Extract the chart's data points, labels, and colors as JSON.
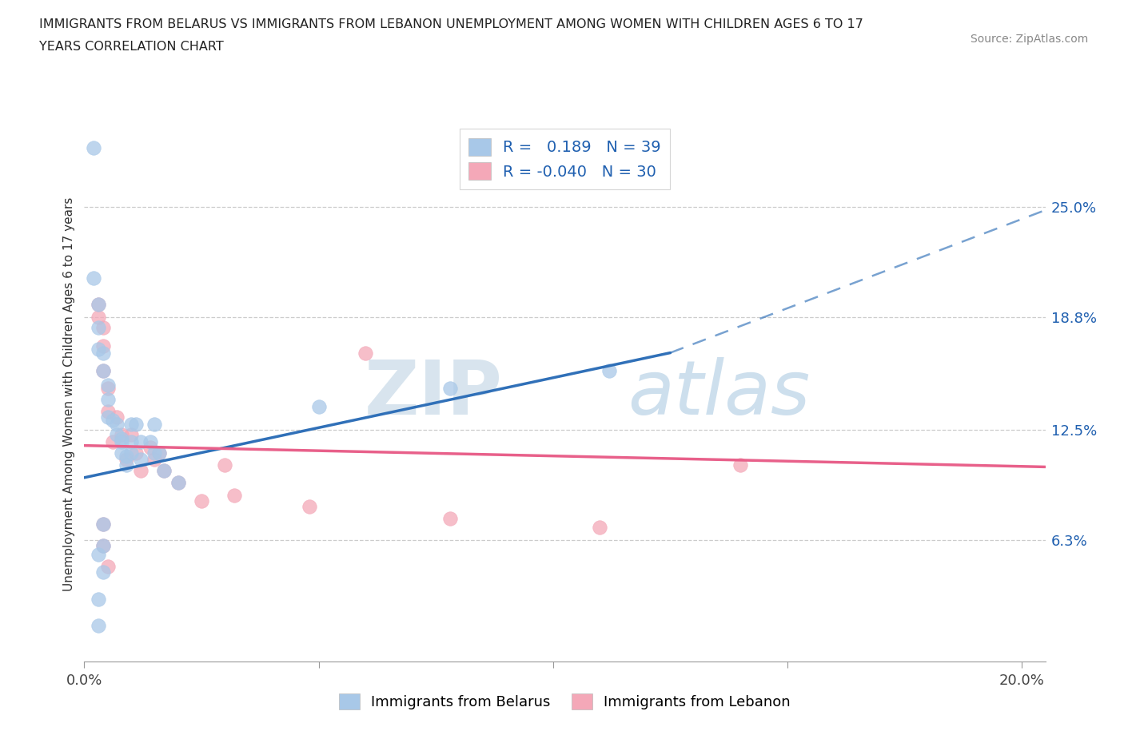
{
  "title_line1": "IMMIGRANTS FROM BELARUS VS IMMIGRANTS FROM LEBANON UNEMPLOYMENT AMONG WOMEN WITH CHILDREN AGES 6 TO 17",
  "title_line2": "YEARS CORRELATION CHART",
  "source_text": "Source: ZipAtlas.com",
  "ylabel": "Unemployment Among Women with Children Ages 6 to 17 years",
  "xlim": [
    0.0,
    0.205
  ],
  "ylim": [
    -0.005,
    0.295
  ],
  "xtick_positions": [
    0.0,
    0.05,
    0.1,
    0.15,
    0.2
  ],
  "xticklabels": [
    "0.0%",
    "",
    "",
    "",
    "20.0%"
  ],
  "ytick_positions": [
    0.063,
    0.125,
    0.188,
    0.25
  ],
  "ytick_labels": [
    "6.3%",
    "12.5%",
    "18.8%",
    "25.0%"
  ],
  "r_belarus": 0.189,
  "n_belarus": 39,
  "r_lebanon": -0.04,
  "n_lebanon": 30,
  "color_belarus": "#a8c8e8",
  "color_lebanon": "#f4a8b8",
  "line_color_belarus": "#3070b8",
  "line_color_lebanon": "#e8608a",
  "watermark_zip": "ZIP",
  "watermark_atlas": "atlas",
  "belarus_line_x0": 0.0,
  "belarus_line_y0": 0.098,
  "belarus_line_x1": 0.125,
  "belarus_line_y1": 0.168,
  "belarus_line_x2": 0.205,
  "belarus_line_y2": 0.248,
  "lebanon_line_x0": 0.0,
  "lebanon_line_y0": 0.116,
  "lebanon_line_x1": 0.205,
  "lebanon_line_y1": 0.104,
  "belarus_x": [
    0.002,
    0.002,
    0.003,
    0.003,
    0.003,
    0.004,
    0.004,
    0.005,
    0.005,
    0.005,
    0.006,
    0.007,
    0.007,
    0.008,
    0.008,
    0.008,
    0.009,
    0.009,
    0.01,
    0.01,
    0.01,
    0.011,
    0.012,
    0.012,
    0.014,
    0.015,
    0.015,
    0.016,
    0.017,
    0.02,
    0.05,
    0.078,
    0.112,
    0.003,
    0.003,
    0.003,
    0.004,
    0.004,
    0.004
  ],
  "belarus_y": [
    0.283,
    0.21,
    0.195,
    0.182,
    0.17,
    0.168,
    0.158,
    0.15,
    0.142,
    0.132,
    0.13,
    0.128,
    0.122,
    0.12,
    0.118,
    0.112,
    0.11,
    0.105,
    0.128,
    0.118,
    0.112,
    0.128,
    0.118,
    0.108,
    0.118,
    0.128,
    0.112,
    0.112,
    0.102,
    0.095,
    0.138,
    0.148,
    0.158,
    0.055,
    0.03,
    0.015,
    0.072,
    0.06,
    0.045
  ],
  "lebanon_x": [
    0.003,
    0.003,
    0.004,
    0.004,
    0.004,
    0.005,
    0.005,
    0.006,
    0.007,
    0.008,
    0.009,
    0.01,
    0.011,
    0.012,
    0.014,
    0.015,
    0.016,
    0.017,
    0.02,
    0.025,
    0.03,
    0.032,
    0.048,
    0.06,
    0.078,
    0.11,
    0.14,
    0.004,
    0.004,
    0.005
  ],
  "lebanon_y": [
    0.195,
    0.188,
    0.182,
    0.172,
    0.158,
    0.148,
    0.135,
    0.118,
    0.132,
    0.122,
    0.108,
    0.122,
    0.112,
    0.102,
    0.115,
    0.108,
    0.112,
    0.102,
    0.095,
    0.085,
    0.105,
    0.088,
    0.082,
    0.168,
    0.075,
    0.07,
    0.105,
    0.072,
    0.06,
    0.048
  ]
}
